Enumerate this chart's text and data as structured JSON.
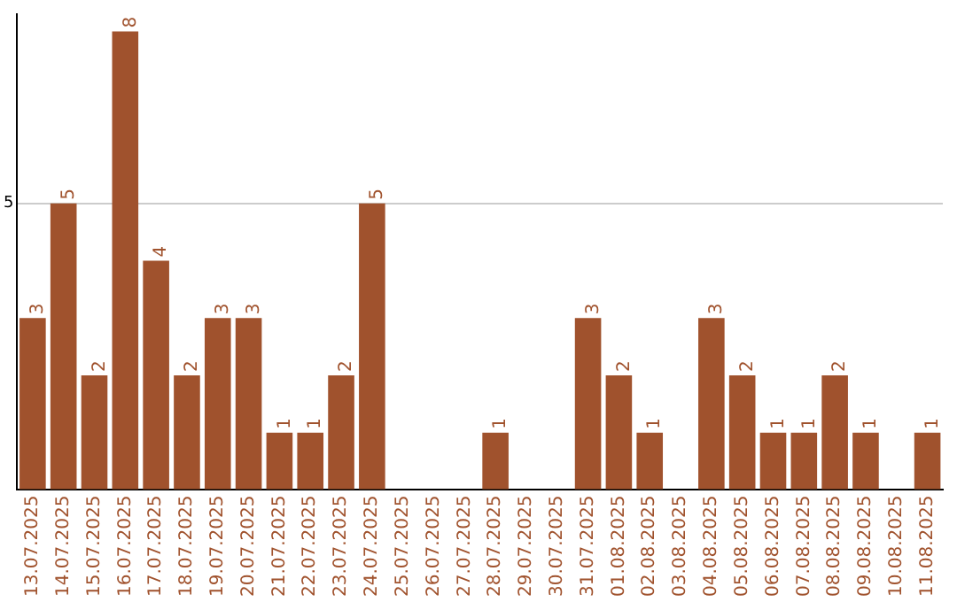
{
  "chart_data": {
    "type": "bar",
    "categories": [
      "13.07.2025",
      "14.07.2025",
      "15.07.2025",
      "16.07.2025",
      "17.07.2025",
      "18.07.2025",
      "19.07.2025",
      "20.07.2025",
      "21.07.2025",
      "22.07.2025",
      "23.07.2025",
      "24.07.2025",
      "25.07.2025",
      "26.07.2025",
      "27.07.2025",
      "28.07.2025",
      "29.07.2025",
      "30.07.2025",
      "31.07.2025",
      "01.08.2025",
      "02.08.2025",
      "03.08.2025",
      "04.08.2025",
      "05.08.2025",
      "06.08.2025",
      "07.08.2025",
      "08.08.2025",
      "09.08.2025",
      "10.08.2025",
      "11.08.2025"
    ],
    "values": [
      3,
      5,
      2,
      8,
      4,
      2,
      3,
      3,
      1,
      1,
      2,
      5,
      0,
      0,
      0,
      1,
      0,
      0,
      3,
      2,
      1,
      0,
      3,
      2,
      1,
      1,
      2,
      1,
      0,
      1
    ],
    "value_labels": [
      "3",
      "5",
      "2",
      "8",
      "4",
      "2",
      "3",
      "3",
      "1",
      "1",
      "2",
      "5",
      null,
      null,
      null,
      "1",
      null,
      null,
      "3",
      "2",
      "1",
      null,
      "3",
      "2",
      "1",
      "1",
      "2",
      "1",
      null,
      "1"
    ],
    "color": "#a0522d",
    "ylim": [
      0,
      8.3
    ],
    "yticks": [
      {
        "value": 0,
        "label": null
      },
      5
    ],
    "grid": "y",
    "legend": false
  }
}
